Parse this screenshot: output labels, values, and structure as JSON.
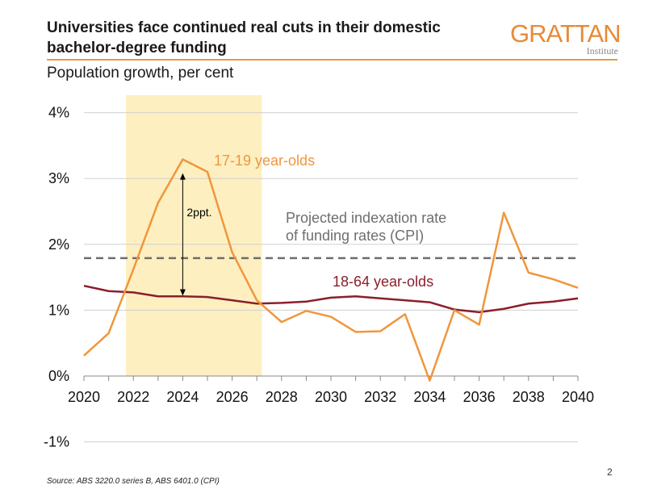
{
  "header": {
    "title": "Universities face continued real cuts in their domestic bachelor-degree funding",
    "logo_main": "GRATTAN",
    "logo_sub": "Institute",
    "subtitle": "Population growth, per cent"
  },
  "footer": {
    "source": "Source: ABS 3220.0 series B, ABS 6401.0 (CPI)",
    "page_number": "2"
  },
  "colors": {
    "accent": "#e89a48",
    "series_1719": "#f0963c",
    "series_1864": "#8b1e2b",
    "cpi": "#6e6e6e",
    "highlight": "#fdefc0"
  },
  "chart_data": {
    "type": "line",
    "title": "",
    "xlabel": "",
    "ylabel": "Population growth, per cent",
    "xlim": [
      2020,
      2040
    ],
    "ylim": [
      -1,
      4
    ],
    "grid": true,
    "x": [
      2020,
      2021,
      2022,
      2023,
      2024,
      2025,
      2026,
      2027,
      2028,
      2029,
      2030,
      2031,
      2032,
      2033,
      2034,
      2035,
      2036,
      2037,
      2038,
      2039,
      2040
    ],
    "x_tick_labels": [
      "2020",
      "2022",
      "2024",
      "2026",
      "2028",
      "2030",
      "2032",
      "2034",
      "2036",
      "2038",
      "2040"
    ],
    "x_tick_values": [
      2020,
      2022,
      2024,
      2026,
      2028,
      2030,
      2032,
      2034,
      2036,
      2038,
      2040
    ],
    "y_tick_labels": [
      "-1%",
      "0%",
      "1%",
      "2%",
      "3%",
      "4%"
    ],
    "y_tick_values": [
      -1,
      0,
      1,
      2,
      3,
      4
    ],
    "series": [
      {
        "name": "17-19 year-olds",
        "color": "#f0963c",
        "values": [
          0.31,
          0.65,
          1.62,
          2.63,
          3.29,
          3.1,
          1.88,
          1.15,
          0.82,
          0.99,
          0.9,
          0.67,
          0.68,
          0.94,
          -0.07,
          1.0,
          0.78,
          2.48,
          1.57,
          1.47,
          1.34
        ]
      },
      {
        "name": "18-64 year-olds",
        "color": "#8b1e2b",
        "values": [
          1.37,
          1.29,
          1.27,
          1.21,
          1.21,
          1.2,
          1.15,
          1.1,
          1.11,
          1.13,
          1.19,
          1.21,
          1.18,
          1.15,
          1.12,
          1.01,
          0.97,
          1.02,
          1.1,
          1.13,
          1.18
        ]
      }
    ],
    "reference_line": {
      "label": "Projected indexation rate of funding rates (CPI)",
      "label_lines": [
        "Projected indexation rate",
        "of funding rates (CPI)"
      ],
      "value": 1.79,
      "style": "dashed"
    },
    "highlight_range": [
      2021.7,
      2027.2
    ],
    "annotation": {
      "text": "2ppt.",
      "x": 2024,
      "from": 3.08,
      "to": 1.22
    }
  }
}
